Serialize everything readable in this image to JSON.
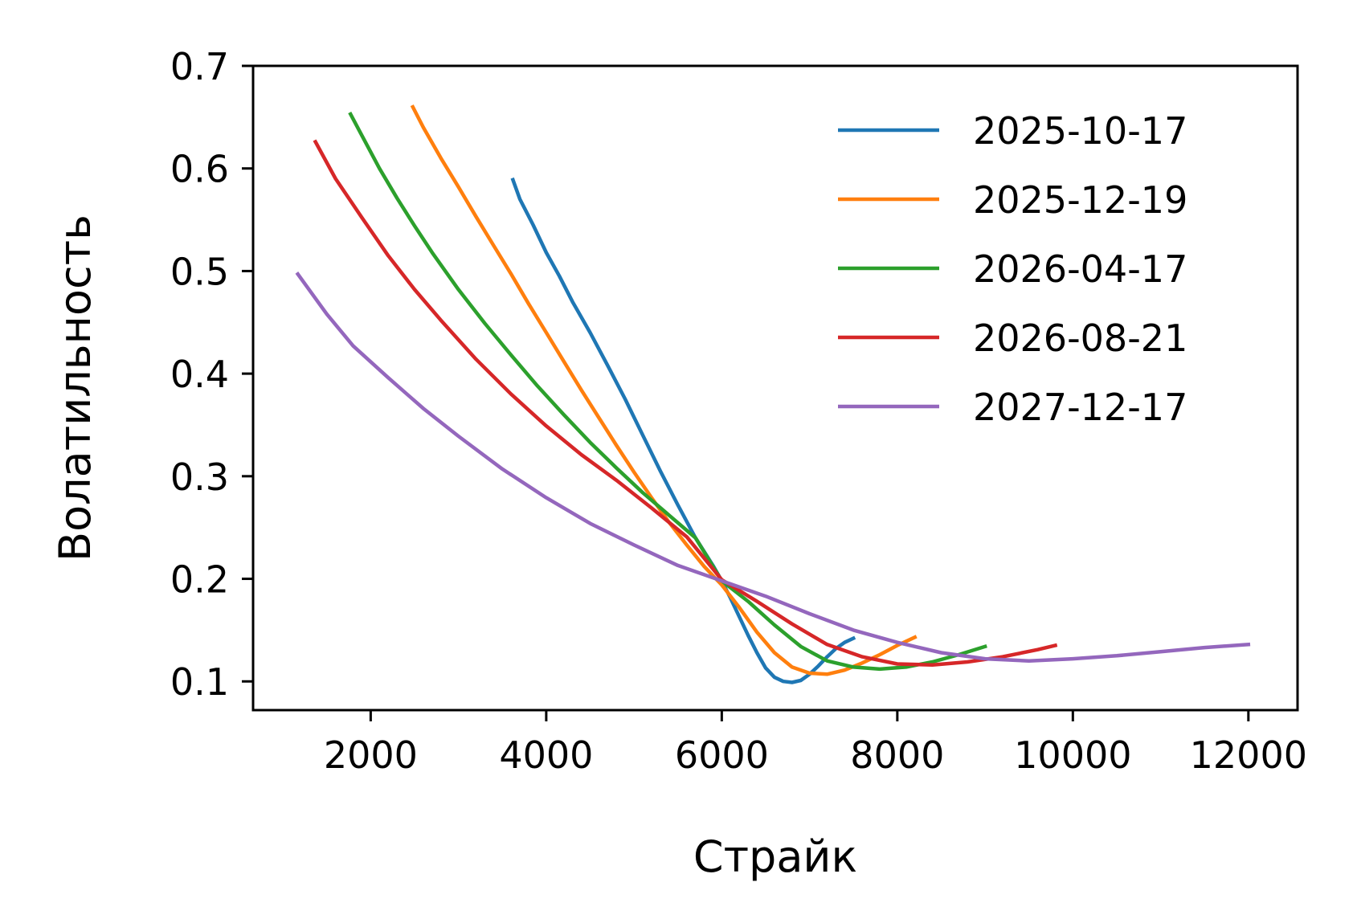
{
  "chart_data": {
    "type": "line",
    "title": "",
    "xlabel": "Страйк",
    "ylabel": "Волатильность",
    "xlim": [
      660,
      12560
    ],
    "ylim": [
      0.072,
      0.7
    ],
    "xticks": [
      2000,
      4000,
      6000,
      8000,
      10000,
      12000
    ],
    "xtick_labels": [
      "2000",
      "4000",
      "6000",
      "8000",
      "10000",
      "12000"
    ],
    "yticks": [
      0.1,
      0.2,
      0.3,
      0.4,
      0.5,
      0.6,
      0.7
    ],
    "ytick_labels": [
      "0.1",
      "0.2",
      "0.3",
      "0.4",
      "0.5",
      "0.6",
      "0.7"
    ],
    "grid": false,
    "legend_position": "top-right",
    "series": [
      {
        "name": "2025-10-17",
        "color": "#1f77b4",
        "x": [
          3620,
          3700,
          3850,
          4000,
          4150,
          4300,
          4500,
          4700,
          4900,
          5100,
          5300,
          5500,
          5700,
          5900,
          6000,
          6100,
          6200,
          6300,
          6400,
          6500,
          6600,
          6700,
          6800,
          6900,
          7000,
          7100,
          7200,
          7300,
          7400,
          7500
        ],
        "y": [
          0.589,
          0.57,
          0.545,
          0.518,
          0.495,
          0.47,
          0.44,
          0.408,
          0.375,
          0.34,
          0.305,
          0.272,
          0.24,
          0.213,
          0.198,
          0.181,
          0.163,
          0.145,
          0.128,
          0.113,
          0.104,
          0.1,
          0.099,
          0.101,
          0.107,
          0.115,
          0.124,
          0.132,
          0.138,
          0.142
        ]
      },
      {
        "name": "2025-12-19",
        "color": "#ff7f0e",
        "x": [
          2480,
          2600,
          2800,
          3000,
          3200,
          3400,
          3600,
          3800,
          4000,
          4200,
          4400,
          4600,
          4800,
          5000,
          5200,
          5400,
          5600,
          5800,
          6000,
          6200,
          6400,
          6600,
          6800,
          7000,
          7200,
          7400,
          7600,
          7800,
          8000,
          8200
        ],
        "y": [
          0.66,
          0.64,
          0.61,
          0.582,
          0.553,
          0.525,
          0.497,
          0.468,
          0.44,
          0.412,
          0.384,
          0.357,
          0.33,
          0.304,
          0.279,
          0.255,
          0.233,
          0.212,
          0.194,
          0.172,
          0.148,
          0.128,
          0.114,
          0.108,
          0.107,
          0.111,
          0.118,
          0.126,
          0.135,
          0.143
        ]
      },
      {
        "name": "2026-04-17",
        "color": "#2ca02c",
        "x": [
          1770,
          1900,
          2100,
          2300,
          2500,
          2700,
          3000,
          3300,
          3600,
          3900,
          4200,
          4500,
          4800,
          5100,
          5400,
          5700,
          6000,
          6300,
          6600,
          6900,
          7200,
          7500,
          7800,
          8100,
          8400,
          8700,
          9000
        ],
        "y": [
          0.653,
          0.632,
          0.6,
          0.571,
          0.544,
          0.518,
          0.482,
          0.449,
          0.418,
          0.388,
          0.36,
          0.333,
          0.308,
          0.284,
          0.262,
          0.24,
          0.198,
          0.178,
          0.155,
          0.134,
          0.12,
          0.114,
          0.112,
          0.114,
          0.119,
          0.126,
          0.134
        ]
      },
      {
        "name": "2026-08-21",
        "color": "#d62728",
        "x": [
          1370,
          1600,
          1900,
          2200,
          2500,
          2800,
          3200,
          3600,
          4000,
          4400,
          4800,
          5200,
          5600,
          6000,
          6400,
          6800,
          7200,
          7600,
          8000,
          8400,
          8800,
          9200,
          9600,
          9800
        ],
        "y": [
          0.626,
          0.59,
          0.552,
          0.515,
          0.482,
          0.452,
          0.414,
          0.38,
          0.349,
          0.321,
          0.296,
          0.269,
          0.241,
          0.199,
          0.178,
          0.156,
          0.136,
          0.124,
          0.117,
          0.116,
          0.119,
          0.124,
          0.131,
          0.135
        ]
      },
      {
        "name": "2027-12-17",
        "color": "#9467bd",
        "x": [
          1170,
          1500,
          1800,
          2200,
          2600,
          3000,
          3500,
          4000,
          4500,
          5000,
          5500,
          6000,
          6500,
          7000,
          7500,
          8000,
          8500,
          9000,
          9500,
          10000,
          10500,
          11000,
          11500,
          12000
        ],
        "y": [
          0.497,
          0.458,
          0.427,
          0.396,
          0.366,
          0.339,
          0.307,
          0.279,
          0.254,
          0.233,
          0.213,
          0.198,
          0.183,
          0.166,
          0.15,
          0.138,
          0.128,
          0.122,
          0.12,
          0.122,
          0.125,
          0.129,
          0.133,
          0.136
        ]
      }
    ]
  }
}
